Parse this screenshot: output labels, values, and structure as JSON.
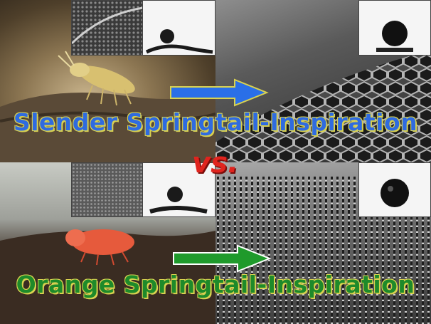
{
  "labels": {
    "top": "Slender Springtail-Inspiration",
    "bottom": "Orange Springtail-Inspiration",
    "versus": "vs."
  },
  "colors": {
    "top_label": "#2f6be0",
    "bottom_label": "#1e8a2a",
    "label_outline": "#d9d250",
    "versus": "#e0241e",
    "top_arrow": "#2a6fe8",
    "bottom_arrow": "#1f9a2b"
  },
  "panels": [
    {
      "name": "slender-springtail-photo",
      "depicts": "slender yellow springtail on bark"
    },
    {
      "name": "hexagonal-sem-surface",
      "depicts": "hexagonal honeycomb microstructure"
    },
    {
      "name": "orange-springtail-photo",
      "depicts": "orange springtail on bark"
    },
    {
      "name": "nanopillar-sem-surface",
      "depicts": "dense nanopillar array"
    }
  ]
}
